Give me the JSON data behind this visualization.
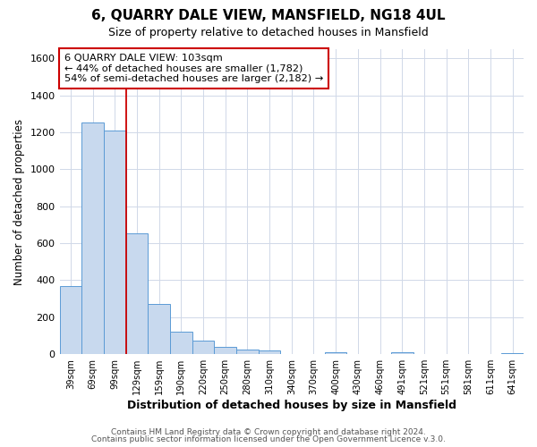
{
  "title": "6, QUARRY DALE VIEW, MANSFIELD, NG18 4UL",
  "subtitle": "Size of property relative to detached houses in Mansfield",
  "xlabel": "Distribution of detached houses by size in Mansfield",
  "ylabel": "Number of detached properties",
  "categories": [
    "39sqm",
    "69sqm",
    "99sqm",
    "129sqm",
    "159sqm",
    "190sqm",
    "220sqm",
    "250sqm",
    "280sqm",
    "310sqm",
    "340sqm",
    "370sqm",
    "400sqm",
    "430sqm",
    "460sqm",
    "491sqm",
    "521sqm",
    "551sqm",
    "581sqm",
    "611sqm",
    "641sqm"
  ],
  "values": [
    370,
    1255,
    1210,
    655,
    270,
    120,
    75,
    38,
    25,
    18,
    0,
    0,
    12,
    0,
    0,
    12,
    0,
    0,
    0,
    0,
    8
  ],
  "bar_color": "#c8d9ee",
  "bar_edge_color": "#5b9bd5",
  "vline_color": "#cc0000",
  "annotation_line1": "6 QUARRY DALE VIEW: 103sqm",
  "annotation_line2": "← 44% of detached houses are smaller (1,782)",
  "annotation_line3": "54% of semi-detached houses are larger (2,182) →",
  "annotation_box_color": "#ffffff",
  "annotation_box_edge": "#cc0000",
  "ylim": [
    0,
    1650
  ],
  "yticks": [
    0,
    200,
    400,
    600,
    800,
    1000,
    1200,
    1400,
    1600
  ],
  "footer_line1": "Contains HM Land Registry data © Crown copyright and database right 2024.",
  "footer_line2": "Contains public sector information licensed under the Open Government Licence v.3.0.",
  "bg_color": "#ffffff",
  "plot_bg_color": "#ffffff",
  "grid_color": "#d0d8e8"
}
